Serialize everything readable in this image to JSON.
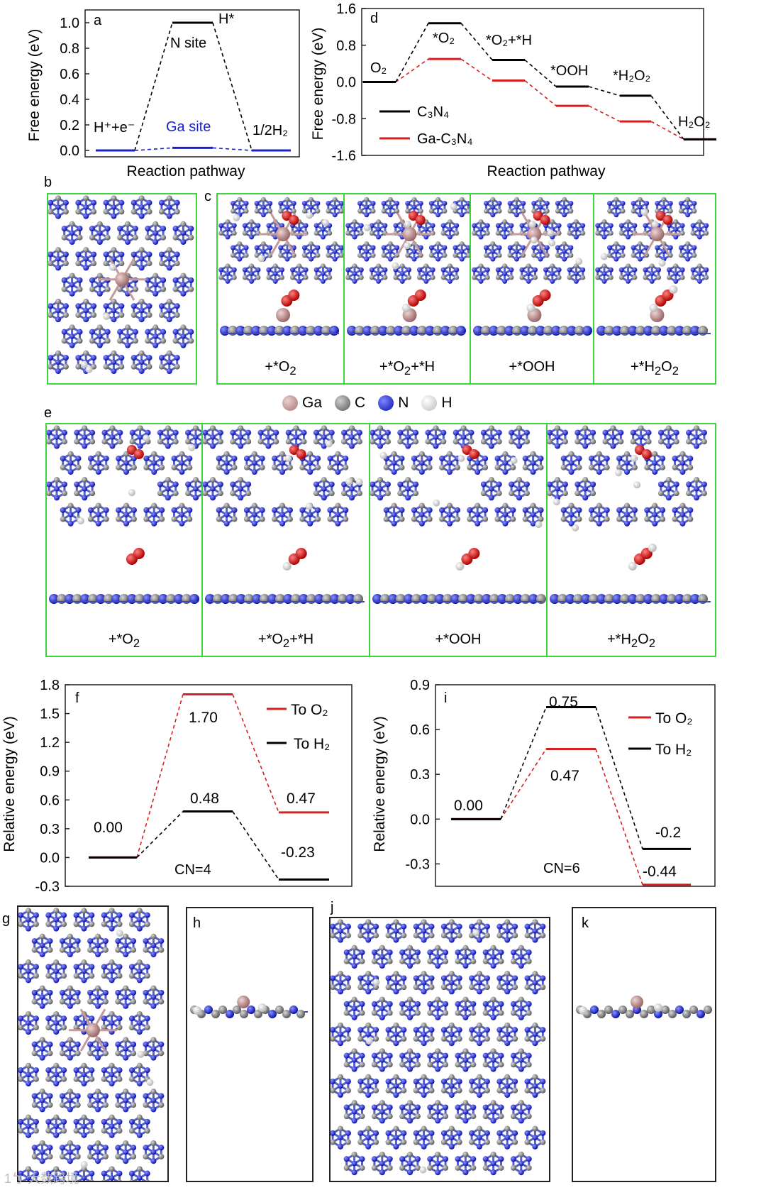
{
  "figure": {
    "panel_letters": {
      "a": "a",
      "b": "b",
      "c": "c",
      "d": "d",
      "e": "e",
      "f": "f",
      "g": "g",
      "h": "h",
      "i": "i",
      "j": "j",
      "k": "k"
    },
    "legend_atoms": [
      {
        "label": "Ga",
        "color": "#b8898a"
      },
      {
        "label": "C",
        "color": "#7a7a7a"
      },
      {
        "label": "N",
        "color": "#1a22d6"
      },
      {
        "label": "H",
        "color": "#f4f4f4"
      }
    ],
    "c_captions": [
      "+*O",
      "+*O",
      "+*OOH",
      "+*H"
    ],
    "e_captions": [
      "+*O",
      "+*O",
      "+*OOH",
      "+*H"
    ],
    "caption_subs": {
      "c1": "2",
      "c2a": "2",
      "c2b": "+*H",
      "c4a": "2",
      "c4b": "O",
      "c4c": "2"
    },
    "watermark": "1ㄅ 大数跨境"
  },
  "chart_data": [
    {
      "id": "a",
      "type": "line",
      "title": "",
      "xlabel": "Reaction pathway",
      "ylabel": "Free energy (eV)",
      "ylim": [
        -0.05,
        1.1
      ],
      "yticks": [
        "0.0",
        "0.2",
        "0.4",
        "0.6",
        "0.8",
        "1.0"
      ],
      "yticks_values": [
        0.0,
        0.2,
        0.4,
        0.6,
        0.8,
        1.0
      ],
      "series": [
        {
          "name": "N site",
          "color": "#000000",
          "values": [
            0.0,
            1.0,
            0.0
          ]
        },
        {
          "name": "Ga site",
          "color": "#1a22c6",
          "values": [
            0.0,
            0.02,
            0.0
          ]
        }
      ],
      "annotations": {
        "start": "H⁺+e⁻",
        "peak": "H*",
        "end": "1/2H₂",
        "n_site": "N site",
        "ga_site": "Ga site"
      }
    },
    {
      "id": "d",
      "type": "line",
      "title": "",
      "xlabel": "Reaction pathway",
      "ylabel": "Free energy (eV)",
      "ylim": [
        -1.6,
        1.6
      ],
      "yticks": [
        "-1.6",
        "-0.8",
        "0.0",
        "0.8",
        "1.6"
      ],
      "yticks_values": [
        -1.6,
        -0.8,
        0.0,
        0.8,
        1.6
      ],
      "steps": [
        "O₂",
        "*O₂",
        "*O₂+*H",
        "*OOH",
        "*H₂O₂",
        "H₂O₂"
      ],
      "series": [
        {
          "name": "C₃N₄",
          "color": "#000000",
          "values": [
            0.0,
            1.28,
            0.48,
            -0.1,
            -0.3,
            -1.25
          ]
        },
        {
          "name": "Ga-C₃N₄",
          "color": "#d42020",
          "values": [
            0.0,
            0.5,
            0.03,
            -0.52,
            -0.86,
            -1.25
          ]
        }
      ]
    },
    {
      "id": "f",
      "type": "line",
      "title": "",
      "xlabel": "",
      "ylabel": "Relative energy (eV)",
      "ylim": [
        -0.3,
        1.8
      ],
      "yticks": [
        "-0.3",
        "0.0",
        "0.3",
        "0.6",
        "0.9",
        "1.2",
        "1.5",
        "1.8"
      ],
      "yticks_values": [
        -0.3,
        0.0,
        0.3,
        0.6,
        0.9,
        1.2,
        1.5,
        1.8
      ],
      "series": [
        {
          "name": "To O₂",
          "color": "#d42020",
          "values": [
            0.0,
            1.7,
            0.47
          ]
        },
        {
          "name": "To H₂",
          "color": "#000000",
          "values": [
            0.0,
            0.48,
            -0.23
          ]
        }
      ],
      "data_labels": {
        "start": "0.00",
        "o2_peak": "1.70",
        "o2_end": "0.47",
        "h2_peak": "0.48",
        "h2_end": "-0.23"
      },
      "annotation": "CN=4"
    },
    {
      "id": "i",
      "type": "line",
      "title": "",
      "xlabel": "",
      "ylabel": "Relative energy (eV)",
      "ylim": [
        -0.45,
        0.9
      ],
      "yticks": [
        "-0.3",
        "0.0",
        "0.3",
        "0.6",
        "0.9"
      ],
      "yticks_values": [
        -0.3,
        0.0,
        0.3,
        0.6,
        0.9
      ],
      "series": [
        {
          "name": "To O₂",
          "color": "#d42020",
          "values": [
            0.0,
            0.47,
            -0.44
          ]
        },
        {
          "name": "To H₂",
          "color": "#000000",
          "values": [
            0.0,
            0.75,
            -0.2
          ]
        }
      ],
      "data_labels": {
        "start": "0.00",
        "h2_peak": "0.75",
        "o2_peak": "0.47",
        "h2_end": "-0.2",
        "o2_end": "-0.44"
      },
      "annotation": "CN=6"
    }
  ]
}
